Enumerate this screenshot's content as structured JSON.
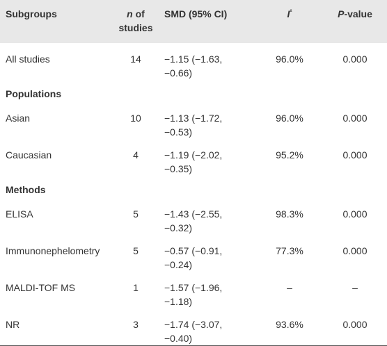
{
  "header": [
    [
      "Subgroups"
    ],
    [
      "n",
      " of studies"
    ],
    [
      "SMD (95% CI)"
    ],
    [
      "I",
      "²"
    ],
    [
      "P",
      "-value"
    ]
  ],
  "rows": [
    {
      "type": "data",
      "cells": [
        "All studies",
        "14",
        "−1.15 (−1.63, −0.66)",
        "96.0%",
        "0.000"
      ]
    },
    {
      "type": "section",
      "label": "Populations"
    },
    {
      "type": "data",
      "cells": [
        "Asian",
        "10",
        "−1.13 (−1.72, −0.53)",
        "96.0%",
        "0.000"
      ]
    },
    {
      "type": "data",
      "cells": [
        "Caucasian",
        "4",
        "−1.19 (−2.02, −0.35)",
        "95.2%",
        "0.000"
      ]
    },
    {
      "type": "section",
      "label": "Methods"
    },
    {
      "type": "data",
      "cells": [
        "ELISA",
        "5",
        "−1.43 (−2.55, −0.32)",
        "98.3%",
        "0.000"
      ]
    },
    {
      "type": "data",
      "cells": [
        "Immunonephelometry",
        "5",
        "−0.57 (−0.91, −0.24)",
        "77.3%",
        "0.000"
      ]
    },
    {
      "type": "data",
      "cells": [
        "MALDI-TOF MS",
        "1",
        "−1.57 (−1.96, −1.18)",
        "–",
        "–"
      ]
    },
    {
      "type": "data",
      "cells": [
        "NR",
        "3",
        "−1.74 (−3.07, −0.40)",
        "93.6%",
        "0.000"
      ]
    }
  ]
}
